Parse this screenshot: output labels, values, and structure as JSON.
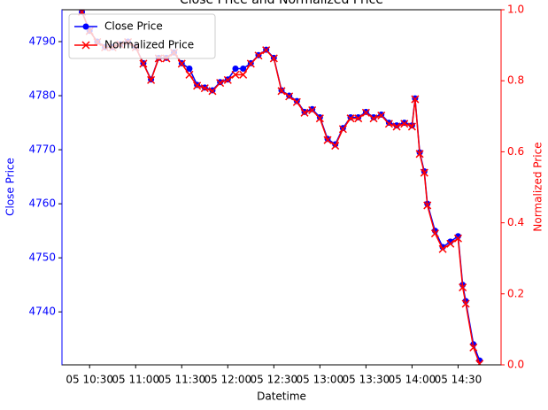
{
  "chart_data": {
    "type": "line",
    "title": "Close Price and Normalized Price",
    "x_label": "Datetime",
    "y_label": "Close Price",
    "y2_label": "Normalized Price",
    "x": [
      "05 10:25",
      "05 10:30",
      "05 10:35",
      "05 10:40",
      "05 10:45",
      "05 10:50",
      "05 10:55",
      "05 11:00",
      "05 11:05",
      "05 11:10",
      "05 11:15",
      "05 11:20",
      "05 11:25",
      "05 11:30",
      "05 11:35",
      "05 11:40",
      "05 11:45",
      "05 11:50",
      "05 11:55",
      "05 12:00",
      "05 12:05",
      "05 12:10",
      "05 12:15",
      "05 12:20",
      "05 12:25",
      "05 12:30",
      "05 12:35",
      "05 12:40",
      "05 12:45",
      "05 12:50",
      "05 12:55",
      "05 13:00",
      "05 13:05",
      "05 13:10",
      "05 13:15",
      "05 13:20",
      "05 13:25",
      "05 13:30",
      "05 13:35",
      "05 13:40",
      "05 13:45",
      "05 13:50",
      "05 13:55",
      "05 14:00",
      "05 14:02",
      "05 14:05",
      "05 14:08",
      "05 14:10",
      "05 14:15",
      "05 14:20",
      "05 14:25",
      "05 14:30",
      "05 14:33",
      "05 14:35",
      "05 14:40",
      "05 14:44"
    ],
    "series": [
      {
        "name": "Close Price",
        "color": "#0000ff",
        "marker": "o",
        "values": [
          4795.5,
          4792,
          4790,
          4789,
          4789,
          4789.5,
          4790,
          4789,
          4786,
          4783,
          4787,
          4787,
          4788,
          4786,
          4785,
          4782,
          4781.5,
          4781,
          4782.5,
          4783,
          4785,
          4785,
          4786,
          4787.5,
          4788.5,
          4787,
          4781,
          4780,
          4779,
          4777,
          4777.5,
          4776,
          4772,
          4771,
          4774,
          4776,
          4776,
          4777,
          4776,
          4776.5,
          4775,
          4774.5,
          4775,
          4774.5,
          4779.5,
          4769.5,
          4766,
          4760,
          4755,
          4752,
          4753,
          4754,
          4745,
          4742,
          4734,
          4731
        ]
      },
      {
        "name": "Normalized Price",
        "color": "#ff0000",
        "marker": "x",
        "axis": "y2",
        "values": [
          0.994,
          0.94,
          0.909,
          0.894,
          0.894,
          0.902,
          0.909,
          0.894,
          0.848,
          0.802,
          0.863,
          0.863,
          0.879,
          0.848,
          0.817,
          0.786,
          0.779,
          0.771,
          0.794,
          0.802,
          0.817,
          0.817,
          0.848,
          0.871,
          0.886,
          0.863,
          0.771,
          0.756,
          0.74,
          0.71,
          0.717,
          0.694,
          0.633,
          0.617,
          0.664,
          0.694,
          0.694,
          0.71,
          0.694,
          0.702,
          0.679,
          0.671,
          0.679,
          0.671,
          0.748,
          0.594,
          0.541,
          0.449,
          0.37,
          0.326,
          0.341,
          0.356,
          0.218,
          0.172,
          0.049,
          0.003
        ]
      }
    ],
    "xlim": [
      "05 10:12",
      "05 14:58"
    ],
    "xticks": [
      "05 10:30",
      "05 11:00",
      "05 11:30",
      "05 12:00",
      "05 12:30",
      "05 13:00",
      "05 13:30",
      "05 14:00",
      "05 14:30"
    ],
    "ylim": [
      4730.2,
      4795.9
    ],
    "yticks": [
      4740,
      4750,
      4760,
      4770,
      4780,
      4790
    ],
    "y2lim": [
      0,
      1
    ],
    "y2ticks": [
      {
        "value": 0,
        "label": "0.0"
      },
      {
        "value": 0.2,
        "label": "0.2"
      },
      {
        "value": 0.4,
        "label": "0.4"
      },
      {
        "value": 0.6,
        "label": "0.6"
      },
      {
        "value": 0.8,
        "label": "0.8"
      },
      {
        "value": 1,
        "label": "1.0"
      }
    ],
    "legend": "upper left"
  }
}
